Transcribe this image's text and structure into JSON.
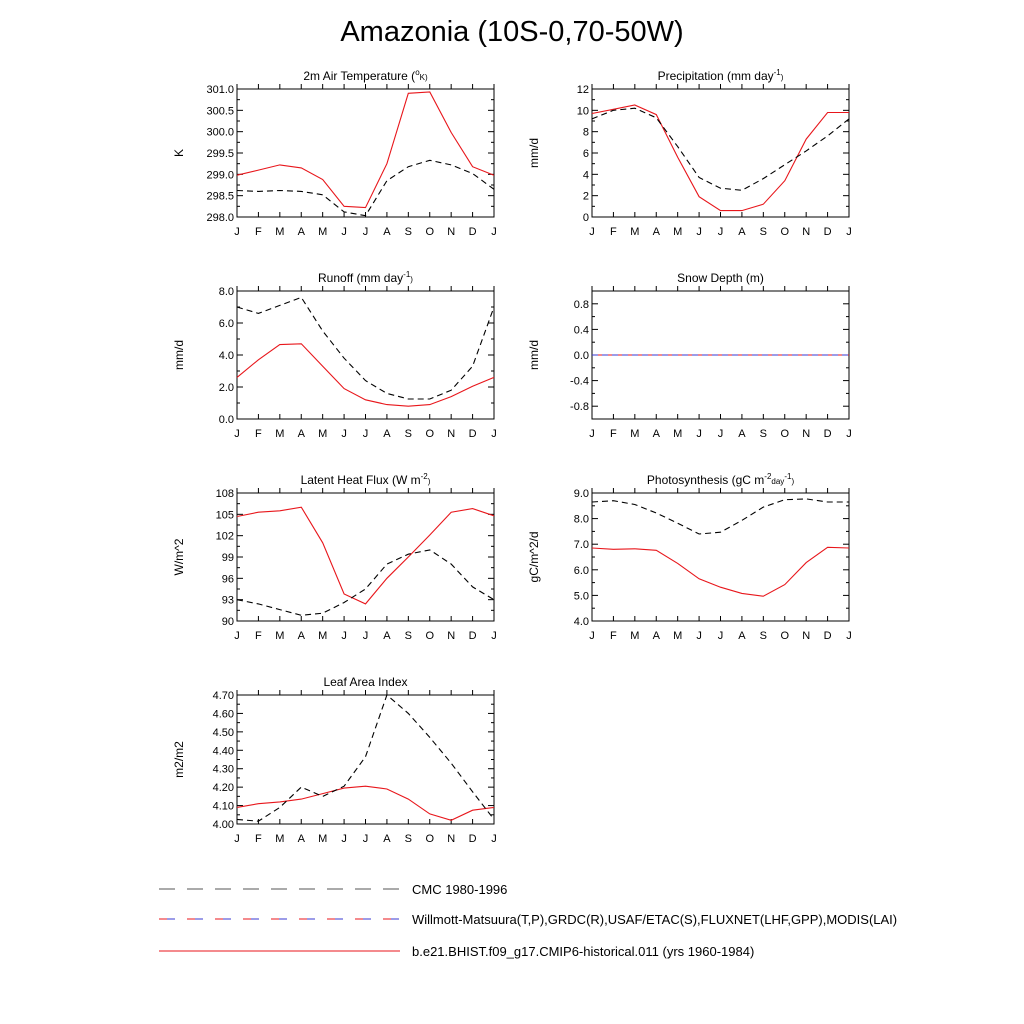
{
  "figure": {
    "title": "Amazonia (10S-0,70-50W)"
  },
  "months": [
    "J",
    "F",
    "M",
    "A",
    "M",
    "J",
    "J",
    "A",
    "S",
    "O",
    "N",
    "D",
    "J"
  ],
  "colors": {
    "model": "#e8161b",
    "obs_cmc": "#000000",
    "obs_multi_a": "#e8161b",
    "obs_multi_b": "#3a3ad0"
  },
  "legend": [
    {
      "label": "CMC 1980-1996",
      "style": "dashed-black"
    },
    {
      "label": "Willmott-Matsuura(T,P),GRDC(R),USAF/ETAC(S),FLUXNET(LHF,GPP),MODIS(LAI)",
      "style": "dashed-redblue"
    },
    {
      "label": "b.e21.BHIST.f09_g17.CMIP6-historical.011 (yrs 1960-1984)",
      "style": "solid-red"
    }
  ],
  "chart_data": [
    {
      "type": "line",
      "title": "2m Air Temperature (",
      "title_sup": "o",
      "title_tail": "K)",
      "ylabel": "K",
      "ylim": [
        298.0,
        301.0
      ],
      "yticks": [
        "298.0",
        "298.5",
        "299.0",
        "299.5",
        "300.0",
        "300.5",
        "301.0"
      ],
      "x": [
        "J",
        "F",
        "M",
        "A",
        "M",
        "J",
        "J",
        "A",
        "S",
        "O",
        "N",
        "D",
        "J"
      ],
      "series": [
        {
          "style": "solid-red",
          "values": [
            298.98,
            299.1,
            299.22,
            299.15,
            298.88,
            298.25,
            298.22,
            299.25,
            300.9,
            300.93,
            299.98,
            299.18,
            298.98
          ]
        },
        {
          "style": "dashed-black",
          "values": [
            298.62,
            298.6,
            298.62,
            298.6,
            298.52,
            298.12,
            298.03,
            298.85,
            299.18,
            299.33,
            299.22,
            299.02,
            298.65
          ]
        }
      ]
    },
    {
      "type": "line",
      "title": "Precipitation (mm day",
      "title_sup": "-1",
      "title_tail": ")",
      "ylabel": "mm/d",
      "ylim": [
        0,
        12
      ],
      "yticks": [
        "0",
        "2",
        "4",
        "6",
        "8",
        "10",
        "12"
      ],
      "x": [
        "J",
        "F",
        "M",
        "A",
        "M",
        "J",
        "J",
        "A",
        "S",
        "O",
        "N",
        "D",
        "J"
      ],
      "series": [
        {
          "style": "solid-red",
          "values": [
            9.7,
            10.1,
            10.5,
            9.6,
            5.6,
            1.9,
            0.6,
            0.6,
            1.2,
            3.4,
            7.3,
            9.8,
            9.8
          ]
        },
        {
          "style": "dashed-black",
          "values": [
            9.2,
            10.0,
            10.2,
            9.3,
            6.6,
            3.7,
            2.7,
            2.5,
            3.6,
            4.9,
            6.2,
            7.6,
            9.2
          ]
        }
      ]
    },
    {
      "type": "line",
      "title": "Runoff (mm day",
      "title_sup": "-1",
      "title_tail": ")",
      "ylabel": "mm/d",
      "ylim": [
        0,
        8
      ],
      "yticks": [
        "0.0",
        "2.0",
        "4.0",
        "6.0",
        "8.0"
      ],
      "x": [
        "J",
        "F",
        "M",
        "A",
        "M",
        "J",
        "J",
        "A",
        "S",
        "O",
        "N",
        "D",
        "J"
      ],
      "series": [
        {
          "style": "solid-red",
          "values": [
            2.6,
            3.7,
            4.65,
            4.7,
            3.3,
            1.9,
            1.2,
            0.9,
            0.8,
            0.9,
            1.4,
            2.05,
            2.6
          ]
        },
        {
          "style": "dashed-black",
          "values": [
            7.0,
            6.6,
            7.1,
            7.6,
            5.5,
            3.8,
            2.4,
            1.6,
            1.25,
            1.25,
            1.8,
            3.3,
            7.0
          ]
        }
      ]
    },
    {
      "type": "line",
      "title": "Snow Depth (m)",
      "title_sup": "",
      "title_tail": "",
      "ylabel": "mm/d",
      "ylim": [
        -1.0,
        1.0
      ],
      "yticks": [
        "-0.8",
        "-0.4",
        "0.0",
        "0.4",
        "0.8"
      ],
      "ytick_values": [
        -0.8,
        -0.4,
        0.0,
        0.4,
        0.8
      ],
      "x": [
        "J",
        "F",
        "M",
        "A",
        "M",
        "J",
        "J",
        "A",
        "S",
        "O",
        "N",
        "D",
        "J"
      ],
      "series": [
        {
          "style": "solid-red",
          "values": [
            0,
            0,
            0,
            0,
            0,
            0,
            0,
            0,
            0,
            0,
            0,
            0,
            0
          ]
        },
        {
          "style": "dashed-redblue",
          "values": [
            0,
            0,
            0,
            0,
            0,
            0,
            0,
            0,
            0,
            0,
            0,
            0,
            0
          ]
        }
      ]
    },
    {
      "type": "line",
      "title": "Latent Heat Flux (W m",
      "title_sup": "-2",
      "title_tail": ")",
      "ylabel": "W/m^2",
      "ylim": [
        90,
        108
      ],
      "yticks": [
        "90",
        "93",
        "96",
        "99",
        "102",
        "105",
        "108"
      ],
      "x": [
        "J",
        "F",
        "M",
        "A",
        "M",
        "J",
        "J",
        "A",
        "S",
        "O",
        "N",
        "D",
        "J"
      ],
      "series": [
        {
          "style": "solid-red",
          "values": [
            104.7,
            105.3,
            105.5,
            106.0,
            101.0,
            93.8,
            92.4,
            96.0,
            99.0,
            102.1,
            105.3,
            105.8,
            104.8
          ]
        },
        {
          "style": "dashed-black",
          "values": [
            93.0,
            92.4,
            91.6,
            90.8,
            91.1,
            92.6,
            94.5,
            98.0,
            99.4,
            100.0,
            98.0,
            94.8,
            93.0
          ]
        }
      ]
    },
    {
      "type": "line",
      "title": "Photosynthesis (gC m",
      "title_sup": "-2",
      "title_mid": "day",
      "title_sup2": "-1",
      "title_tail": ")",
      "ylabel": "gC/m^2/d",
      "ylim": [
        4.0,
        9.0
      ],
      "yticks": [
        "4.0",
        "5.0",
        "6.0",
        "7.0",
        "8.0",
        "9.0"
      ],
      "x": [
        "J",
        "F",
        "M",
        "A",
        "M",
        "J",
        "J",
        "A",
        "S",
        "O",
        "N",
        "D",
        "J"
      ],
      "series": [
        {
          "style": "solid-red",
          "values": [
            6.85,
            6.8,
            6.82,
            6.76,
            6.25,
            5.65,
            5.32,
            5.08,
            4.97,
            5.42,
            6.28,
            6.88,
            6.85
          ]
        },
        {
          "style": "dashed-black",
          "values": [
            8.65,
            8.7,
            8.55,
            8.22,
            7.82,
            7.4,
            7.47,
            7.93,
            8.45,
            8.74,
            8.77,
            8.65,
            8.65
          ]
        }
      ]
    },
    {
      "type": "line",
      "title": "Leaf Area Index",
      "title_sup": "",
      "title_tail": "",
      "ylabel": "m2/m2",
      "ylim": [
        4.0,
        4.7
      ],
      "yticks": [
        "4.00",
        "4.10",
        "4.20",
        "4.30",
        "4.40",
        "4.50",
        "4.60",
        "4.70"
      ],
      "x": [
        "J",
        "F",
        "M",
        "A",
        "M",
        "J",
        "J",
        "A",
        "S",
        "O",
        "N",
        "D",
        "J"
      ],
      "series": [
        {
          "style": "solid-red",
          "values": [
            4.09,
            4.11,
            4.12,
            4.135,
            4.165,
            4.195,
            4.205,
            4.19,
            4.135,
            4.055,
            4.02,
            4.075,
            4.09
          ]
        },
        {
          "style": "dashed-black",
          "values": [
            4.025,
            4.015,
            4.09,
            4.2,
            4.15,
            4.205,
            4.365,
            4.7,
            4.6,
            4.47,
            4.33,
            4.175,
            4.025
          ]
        }
      ]
    }
  ]
}
